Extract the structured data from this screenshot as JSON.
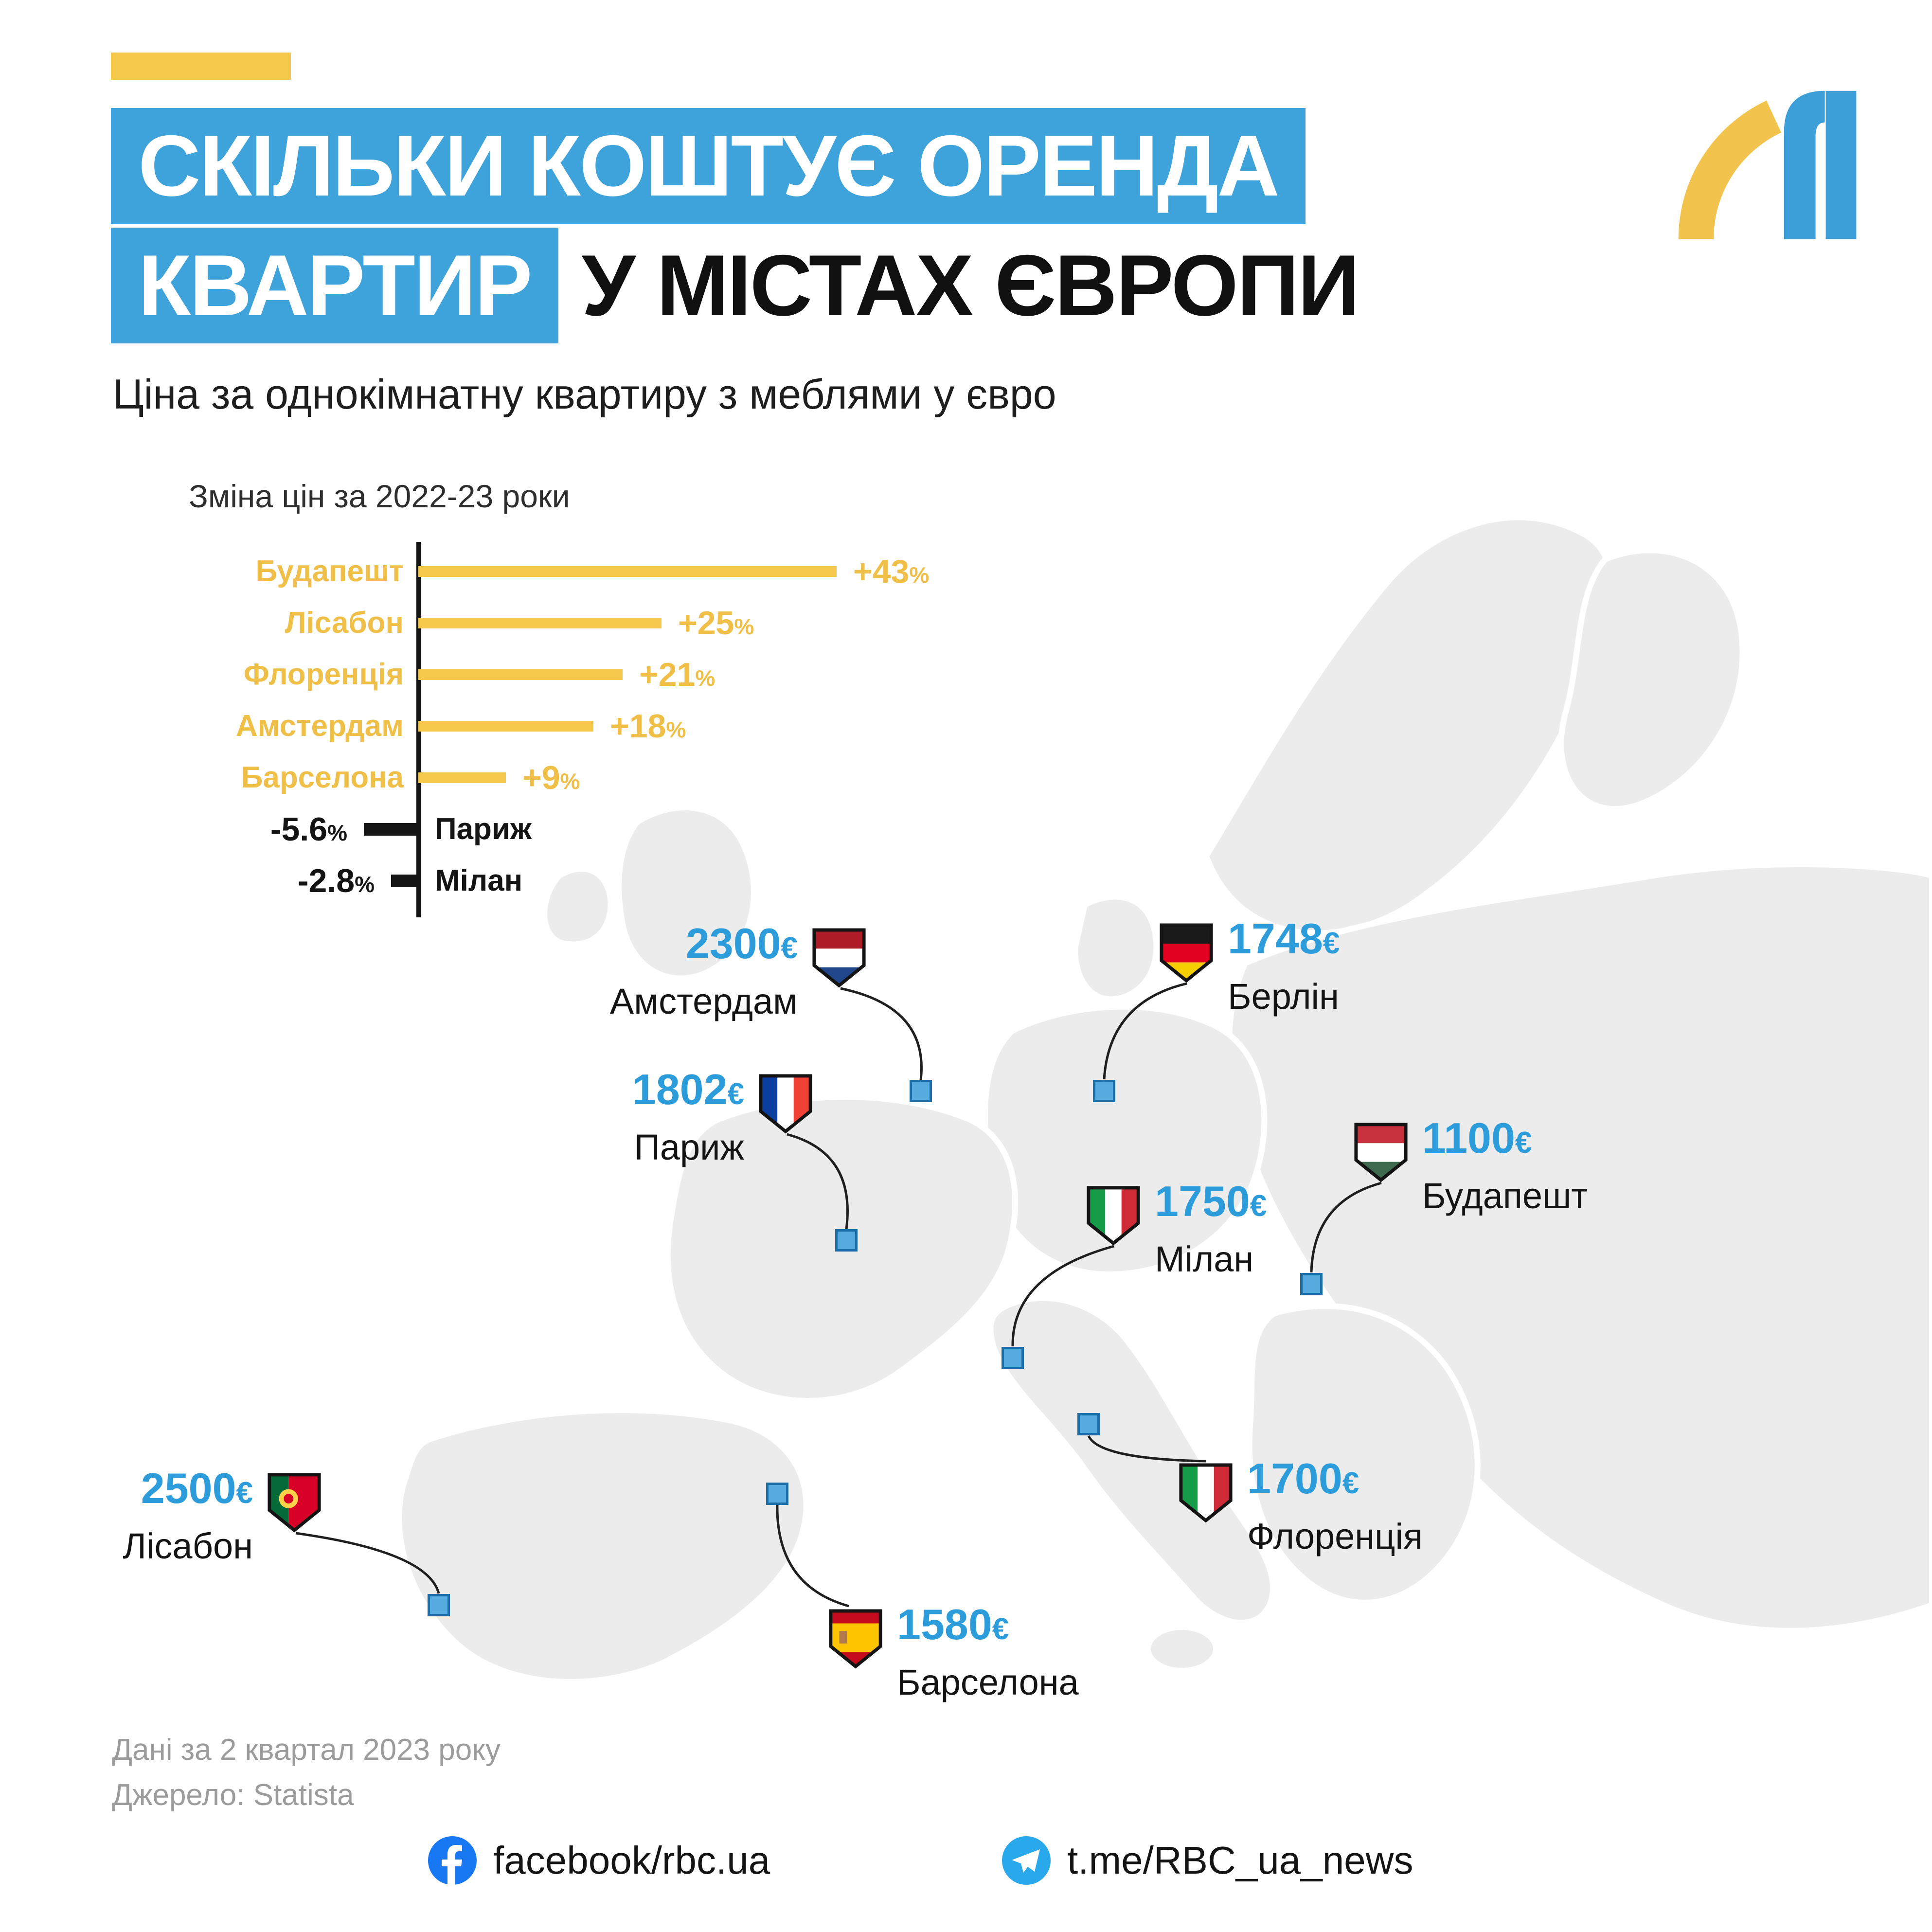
{
  "colors": {
    "accent_blue": "#3FA3DB",
    "accent_yellow": "#F5C84C",
    "price_blue": "#2D9CDB",
    "map_gray": "#ECECEC",
    "negative_black": "#141414",
    "muted_gray": "#9C9C9C"
  },
  "header": {
    "title_line1": "СКІЛЬКИ КОШТУЄ ОРЕНДА",
    "title_line2_highlight": "КВАРТИР",
    "title_line2_rest": "У МІСТАХ ЄВРОПИ",
    "subtitle": "Ціна за однокімнатну квартиру з меблями у євро"
  },
  "chart_data": {
    "type": "bar",
    "orientation": "horizontal",
    "title": "Зміна цін за 2022-23 роки",
    "categories": [
      "Будапешт",
      "Лісабон",
      "Флоренція",
      "Амстердам",
      "Барселона",
      "Париж",
      "Мілан"
    ],
    "values": [
      43,
      25,
      21,
      18,
      9,
      -5.6,
      -2.8
    ],
    "value_labels": [
      "+43",
      "+25",
      "+21",
      "+18",
      "+9",
      "-5.6",
      "-2.8"
    ],
    "unit": "%",
    "positive_color": "#F5C84C",
    "negative_color": "#141414",
    "layout": "zero baseline vertical axis; positive bars extend right, negative bars extend left"
  },
  "map": {
    "currency": "€",
    "markers": [
      {
        "city": "Амстердам",
        "price": "2300",
        "flag": "netherlands"
      },
      {
        "city": "Берлін",
        "price": "1748",
        "flag": "germany"
      },
      {
        "city": "Париж",
        "price": "1802",
        "flag": "france"
      },
      {
        "city": "Будапешт",
        "price": "1100",
        "flag": "hungary"
      },
      {
        "city": "Мілан",
        "price": "1750",
        "flag": "italy"
      },
      {
        "city": "Флоренція",
        "price": "1700",
        "flag": "italy"
      },
      {
        "city": "Лісабон",
        "price": "2500",
        "flag": "portugal"
      },
      {
        "city": "Барселона",
        "price": "1580",
        "flag": "spain"
      }
    ]
  },
  "footer": {
    "note_period": "Дані за 2 квартал 2023 року",
    "note_source": "Джерело: Statista"
  },
  "social": {
    "facebook": "facebook/rbc.ua",
    "telegram": "t.me/RBC_ua_news"
  }
}
